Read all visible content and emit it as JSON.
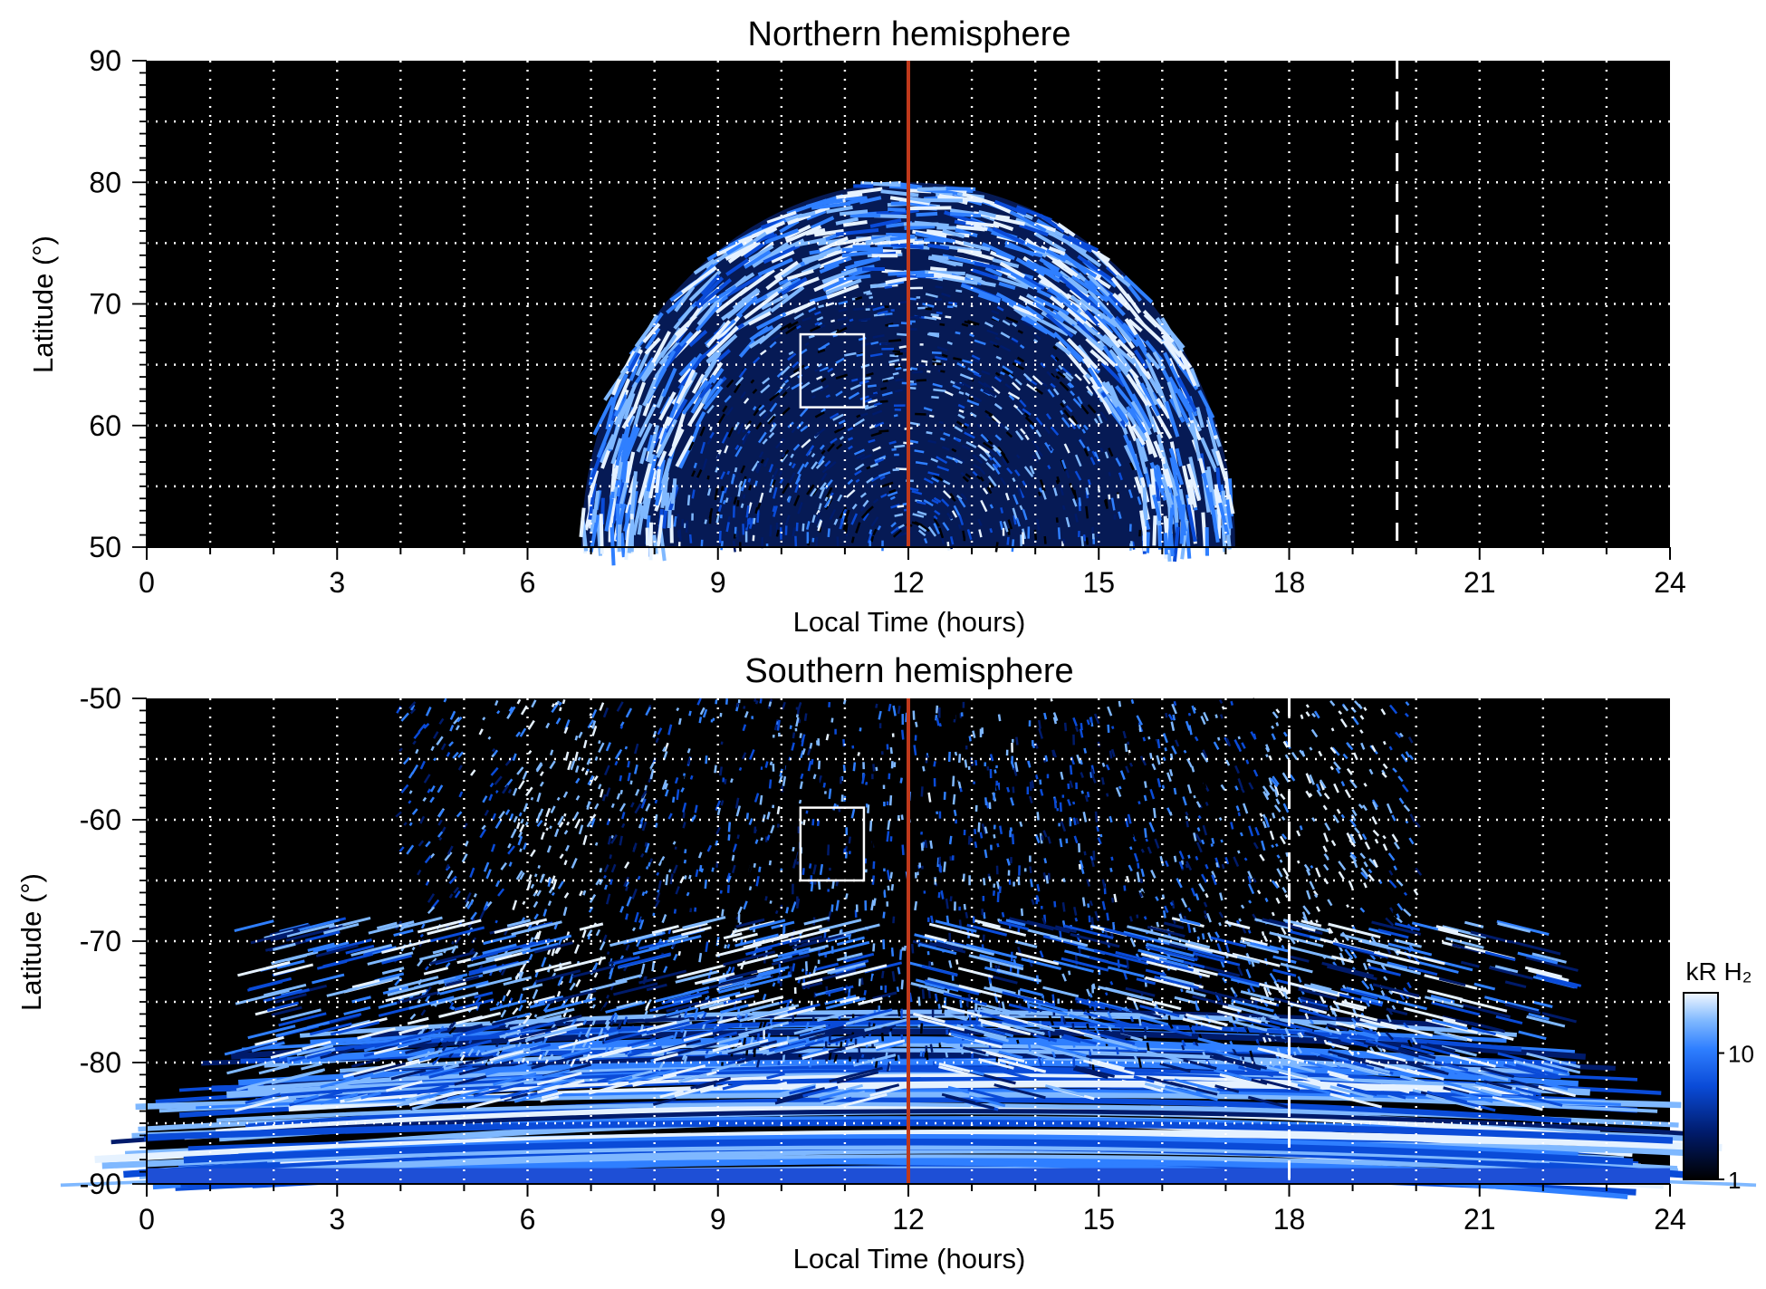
{
  "chart_data": [
    {
      "type": "heatmap",
      "title": "Northern hemisphere",
      "xlabel": "Local Time (hours)",
      "ylabel": "Latitude (°)",
      "xlim": [
        0,
        24
      ],
      "ylim": [
        50,
        90
      ],
      "xticks": [
        0,
        3,
        6,
        9,
        12,
        15,
        18,
        21,
        24
      ],
      "yticks": [
        50,
        60,
        70,
        80,
        90
      ],
      "grid": true,
      "noon_line_x": 12,
      "dashed_line_x": 19.7,
      "emission_region": {
        "lt_start": 7.0,
        "lt_end": 17.3,
        "lat_top": 80,
        "lat_base": 50
      },
      "main_oval_lat": [
        68,
        80
      ],
      "box": {
        "x": [
          10.3,
          11.3
        ],
        "y": [
          61.5,
          67.5
        ]
      }
    },
    {
      "type": "heatmap",
      "title": "Southern hemisphere",
      "xlabel": "Local Time (hours)",
      "ylabel": "Latitude (°)",
      "xlim": [
        0,
        24
      ],
      "ylim": [
        -90,
        -50
      ],
      "xticks": [
        0,
        3,
        6,
        9,
        12,
        15,
        18,
        21,
        24
      ],
      "yticks": [
        -90,
        -80,
        -70,
        -60,
        -50
      ],
      "grid": true,
      "noon_line_x": 12,
      "dashed_line_x": 18,
      "emission_region": {
        "lt_start": 0,
        "lt_end": 24,
        "lat_top": -50,
        "lat_base": -90
      },
      "bright_arcs_lt": [
        6.5,
        18.5
      ],
      "box": {
        "x": [
          10.3,
          11.3
        ],
        "y": [
          -65,
          -59
        ]
      },
      "colorbar": {
        "label": "kR H₂",
        "scale": "log",
        "range": [
          1,
          30
        ],
        "ticks": [
          1,
          10
        ]
      }
    }
  ],
  "colors": {
    "background": "#000000",
    "emission_palette": [
      "#000000",
      "#001b6b",
      "#0a4bd8",
      "#2f7fff",
      "#7fb8ff",
      "#e6f2ff"
    ],
    "noon_line": "#c0391b",
    "grid": "#ffffff",
    "box": "#ffffff"
  }
}
